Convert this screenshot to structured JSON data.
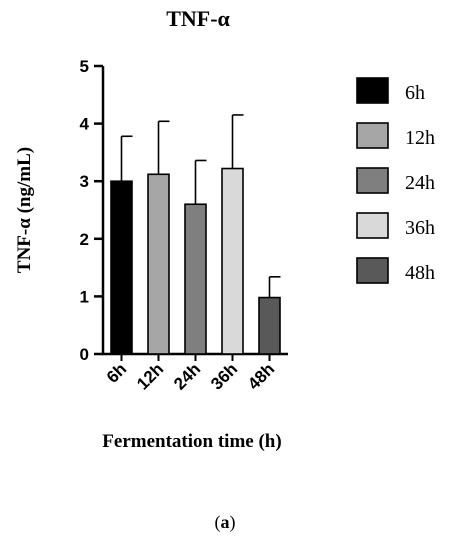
{
  "chart_data": {
    "type": "bar",
    "title": "TNF-α",
    "xlabel": "Fermentation time (h)",
    "ylabel": "TNF-α (ng/mL)",
    "categories": [
      "6h",
      "12h",
      "24h",
      "36h",
      "48h"
    ],
    "values": [
      3.0,
      3.12,
      2.6,
      3.22,
      0.98
    ],
    "error_upper": [
      0.78,
      0.92,
      0.76,
      0.93,
      0.36
    ],
    "ylim": [
      0,
      5
    ],
    "yticks": [
      0,
      1,
      2,
      3,
      4,
      5
    ],
    "colors": [
      "#000000",
      "#a6a6a6",
      "#7f7f7f",
      "#d9d9d9",
      "#595959"
    ],
    "legend": {
      "placement": "right",
      "entries": [
        "6h",
        "12h",
        "24h",
        "36h",
        "48h"
      ]
    },
    "grid": false
  },
  "caption": {
    "open": "(",
    "letter": "a",
    "close": ")"
  }
}
